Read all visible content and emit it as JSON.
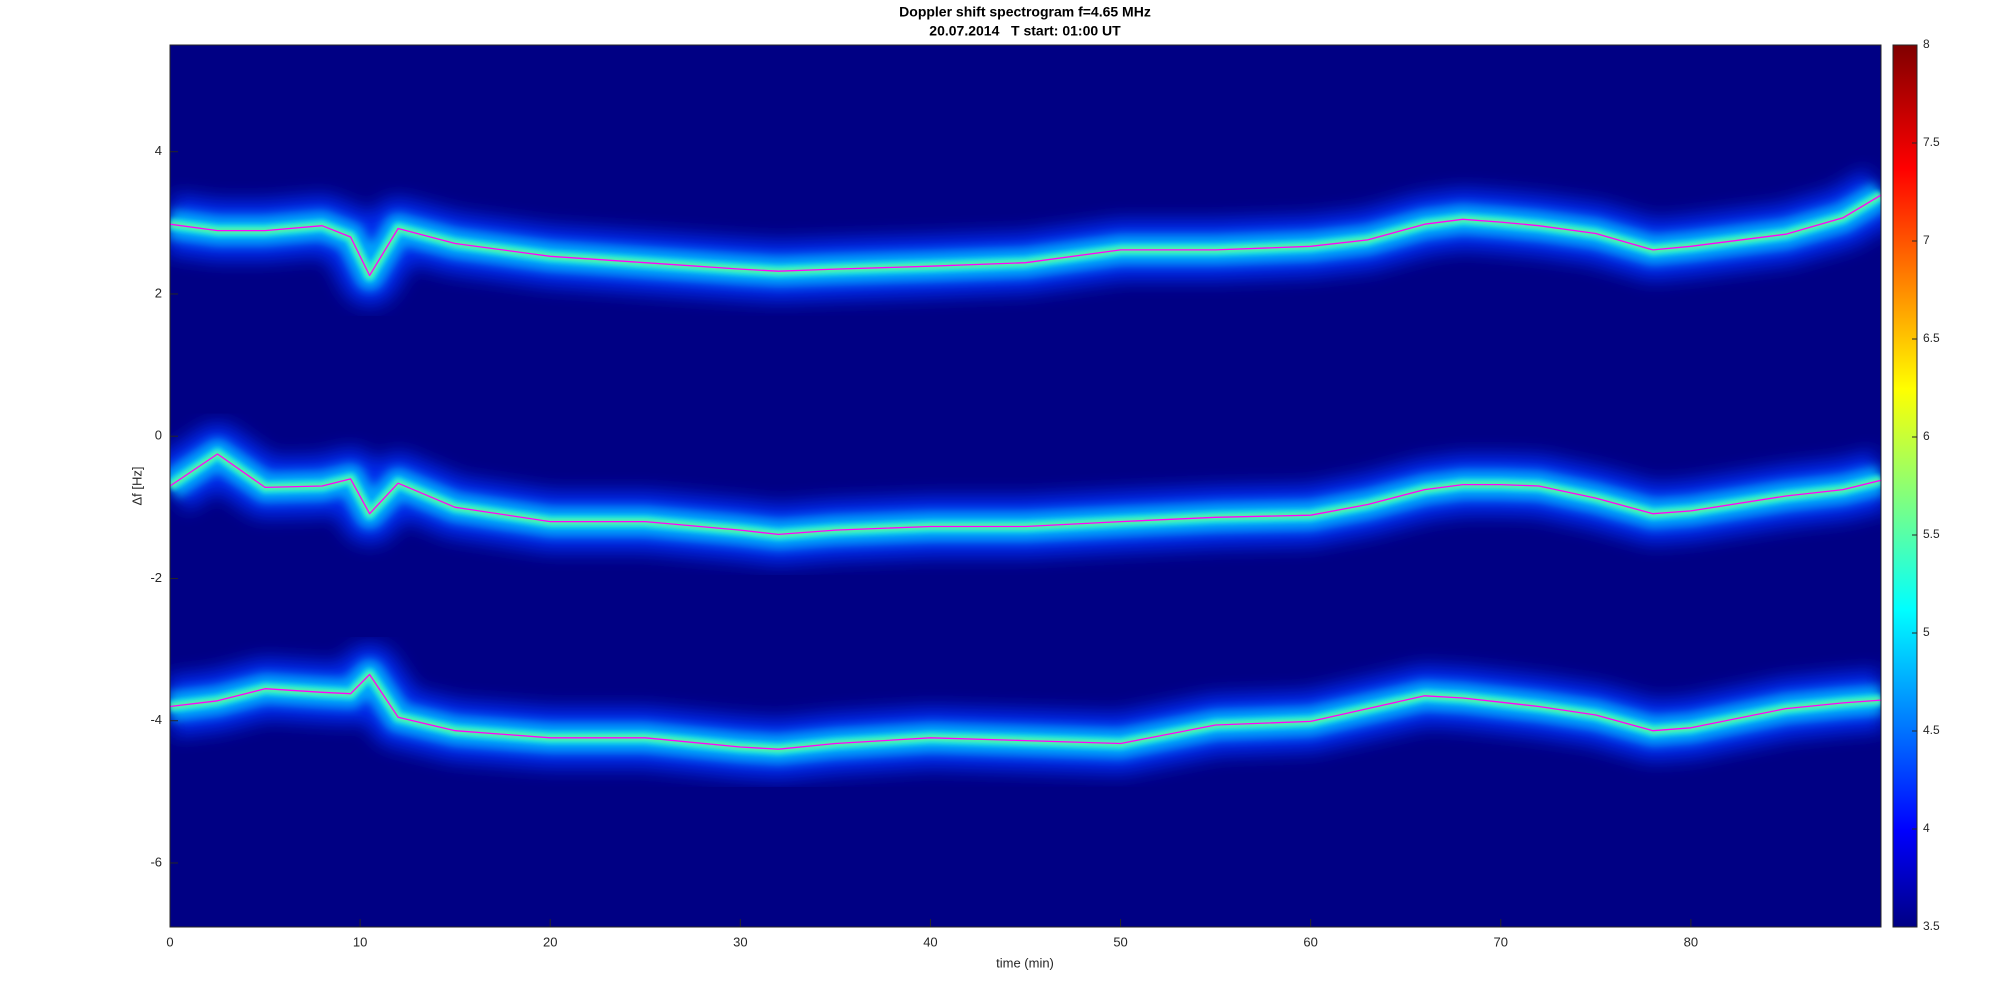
{
  "chart_data": {
    "type": "spectrogram",
    "title": "Doppler shift spectrogram f=4.65 MHz",
    "subtitle": "20.07.2014   T start: 01:00 UT",
    "x_label": "time (min)",
    "y_label": "Δf [Hz]",
    "xlim": [
      0,
      90
    ],
    "xticks": [
      0,
      10,
      20,
      30,
      40,
      50,
      60,
      70,
      80
    ],
    "ylim": [
      -6.9,
      5.5
    ],
    "yticks": [
      -6,
      -4,
      -2,
      0,
      2,
      4
    ],
    "colormap": "jet",
    "clim": [
      3.5,
      8
    ],
    "cticks": [
      3.5,
      4,
      4.5,
      5,
      5.5,
      6,
      6.5,
      7,
      7.5,
      8
    ],
    "grid": false,
    "x": [
      0,
      2.5,
      5,
      8,
      9.5,
      10.5,
      12,
      15,
      20,
      25,
      30,
      32,
      35,
      40,
      45,
      50,
      55,
      60,
      63,
      66,
      68,
      70,
      72,
      75,
      78,
      80,
      85,
      88,
      90
    ],
    "series": [
      {
        "color": "#ff00ff",
        "values": [
          2.98,
          2.89,
          2.89,
          2.96,
          2.8,
          2.26,
          2.92,
          2.71,
          2.53,
          2.44,
          2.35,
          2.32,
          2.35,
          2.39,
          2.44,
          2.62,
          2.62,
          2.67,
          2.76,
          2.98,
          3.05,
          3.01,
          2.96,
          2.85,
          2.62,
          2.67,
          2.84,
          3.07,
          3.39
        ]
      },
      {
        "color": "#ff00ff",
        "values": [
          -0.7,
          -0.25,
          -0.72,
          -0.7,
          -0.6,
          -1.09,
          -0.66,
          -1.0,
          -1.2,
          -1.2,
          -1.32,
          -1.38,
          -1.32,
          -1.27,
          -1.27,
          -1.2,
          -1.14,
          -1.11,
          -0.96,
          -0.75,
          -0.68,
          -0.68,
          -0.7,
          -0.87,
          -1.09,
          -1.05,
          -0.84,
          -0.75,
          -0.62
        ]
      },
      {
        "color": "#ff00ff",
        "values": [
          -3.8,
          -3.72,
          -3.55,
          -3.6,
          -3.62,
          -3.35,
          -3.95,
          -4.14,
          -4.24,
          -4.24,
          -4.37,
          -4.4,
          -4.32,
          -4.24,
          -4.28,
          -4.32,
          -4.06,
          -4.01,
          -3.83,
          -3.65,
          -3.68,
          -3.74,
          -3.8,
          -3.92,
          -4.14,
          -4.1,
          -3.83,
          -3.75,
          -3.71
        ]
      }
    ]
  }
}
